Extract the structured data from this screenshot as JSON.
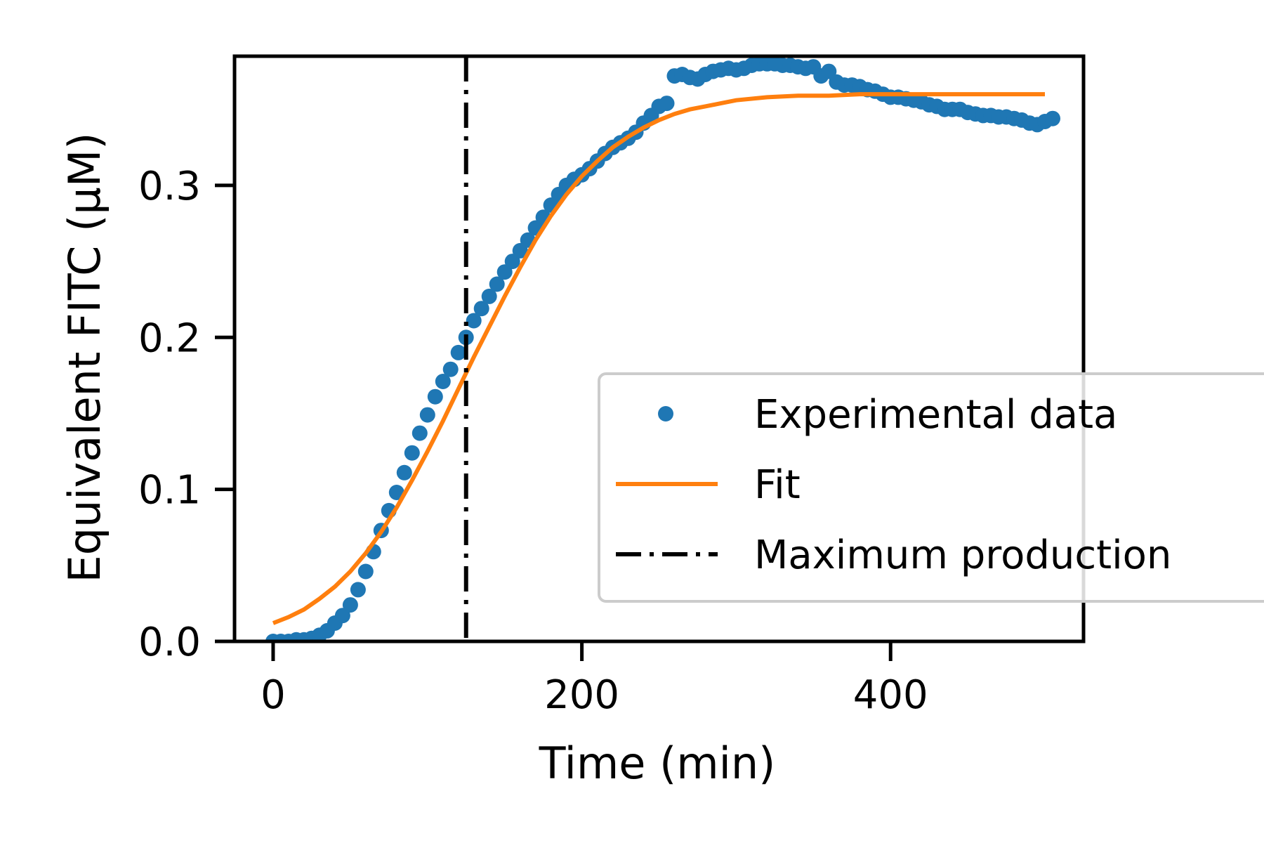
{
  "chart_data": {
    "type": "scatter",
    "title": "",
    "xlabel": "Time (min)",
    "ylabel": "Equivalent FITC (µM)",
    "xlim": [
      -25,
      525
    ],
    "ylim": [
      0,
      0.385
    ],
    "xticks": [
      0,
      200,
      400
    ],
    "xtick_labels": [
      "0",
      "200",
      "400"
    ],
    "yticks": [
      0,
      0.1,
      0.2,
      0.3
    ],
    "ytick_labels": [
      "0.0",
      "0.1",
      "0.2",
      "0.3"
    ],
    "grid": false,
    "legend_position": "center-right",
    "vertical_line": {
      "x": 125,
      "label": "Maximum production"
    },
    "series": [
      {
        "name": "Experimental data",
        "kind": "points",
        "color": "#1f77b4",
        "x": [
          0,
          5,
          10,
          15,
          20,
          25,
          30,
          35,
          40,
          45,
          50,
          55,
          60,
          65,
          70,
          75,
          80,
          85,
          90,
          95,
          100,
          105,
          110,
          115,
          120,
          125,
          130,
          135,
          140,
          145,
          150,
          155,
          160,
          165,
          170,
          175,
          180,
          185,
          190,
          195,
          200,
          205,
          210,
          215,
          220,
          225,
          230,
          235,
          240,
          245,
          250,
          255,
          260,
          265,
          270,
          275,
          280,
          285,
          290,
          295,
          300,
          305,
          310,
          315,
          320,
          325,
          330,
          335,
          340,
          345,
          350,
          355,
          360,
          365,
          370,
          375,
          380,
          385,
          390,
          395,
          400,
          405,
          410,
          415,
          420,
          425,
          430,
          435,
          440,
          445,
          450,
          455,
          460,
          465,
          470,
          475,
          480,
          485,
          490,
          495,
          500,
          505
        ],
        "y": [
          0.0,
          0.0,
          0.0,
          0.001,
          0.001,
          0.002,
          0.004,
          0.007,
          0.012,
          0.017,
          0.024,
          0.034,
          0.046,
          0.059,
          0.073,
          0.086,
          0.098,
          0.111,
          0.124,
          0.137,
          0.149,
          0.161,
          0.171,
          0.179,
          0.19,
          0.2,
          0.211,
          0.219,
          0.227,
          0.235,
          0.243,
          0.25,
          0.257,
          0.264,
          0.272,
          0.279,
          0.287,
          0.294,
          0.3,
          0.304,
          0.307,
          0.311,
          0.316,
          0.321,
          0.325,
          0.328,
          0.331,
          0.335,
          0.341,
          0.346,
          0.352,
          0.354,
          0.372,
          0.373,
          0.371,
          0.37,
          0.373,
          0.375,
          0.376,
          0.377,
          0.376,
          0.377,
          0.379,
          0.38,
          0.38,
          0.38,
          0.379,
          0.379,
          0.378,
          0.377,
          0.378,
          0.372,
          0.375,
          0.368,
          0.366,
          0.366,
          0.365,
          0.363,
          0.362,
          0.36,
          0.358,
          0.358,
          0.357,
          0.356,
          0.355,
          0.353,
          0.352,
          0.35,
          0.35,
          0.35,
          0.348,
          0.347,
          0.346,
          0.346,
          0.345,
          0.345,
          0.344,
          0.343,
          0.341,
          0.34,
          0.342,
          0.344
        ]
      },
      {
        "name": "Fit",
        "kind": "line",
        "color": "#ff7f0e",
        "x": [
          0,
          10,
          20,
          30,
          40,
          50,
          60,
          70,
          80,
          90,
          100,
          110,
          120,
          130,
          140,
          150,
          160,
          170,
          180,
          190,
          200,
          210,
          220,
          230,
          240,
          250,
          260,
          270,
          280,
          290,
          300,
          320,
          340,
          360,
          380,
          400,
          420,
          440,
          460,
          480,
          500
        ],
        "y": [
          0.012,
          0.016,
          0.021,
          0.028,
          0.036,
          0.046,
          0.058,
          0.072,
          0.088,
          0.106,
          0.125,
          0.145,
          0.166,
          0.187,
          0.207,
          0.227,
          0.246,
          0.264,
          0.28,
          0.294,
          0.306,
          0.316,
          0.325,
          0.332,
          0.338,
          0.343,
          0.347,
          0.35,
          0.352,
          0.354,
          0.356,
          0.358,
          0.359,
          0.359,
          0.36,
          0.36,
          0.36,
          0.36,
          0.36,
          0.36,
          0.36
        ]
      },
      {
        "name": "Maximum production",
        "kind": "vline",
        "color": "#000000"
      }
    ]
  }
}
